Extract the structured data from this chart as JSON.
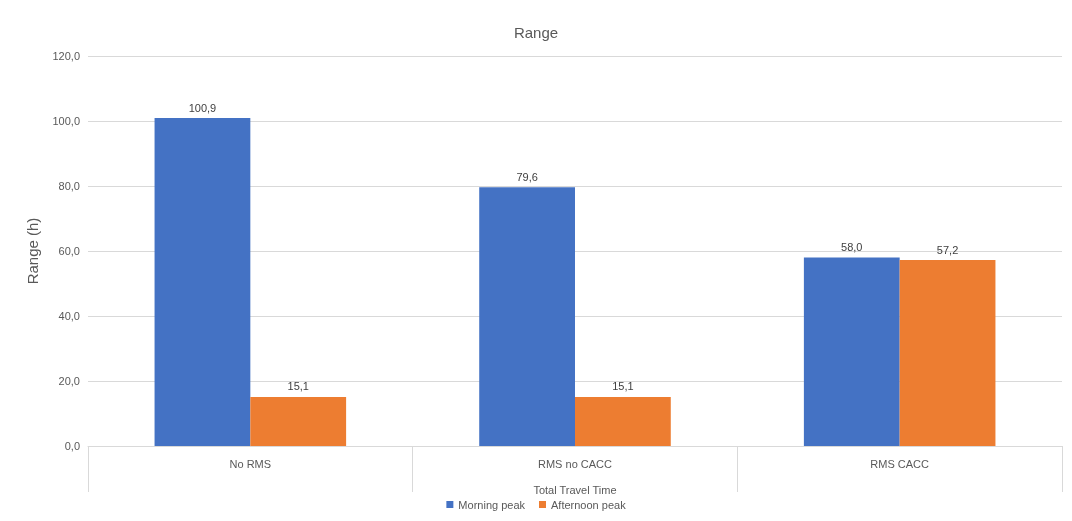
{
  "chart_data": {
    "type": "bar",
    "title": "Range",
    "ylabel": "Range (h)",
    "xlabel": "Total Travel Time",
    "categories": [
      "No RMS",
      "RMS no CACC",
      "RMS CACC"
    ],
    "series": [
      {
        "name": "Morning peak",
        "color": "#4472c4",
        "values": [
          100.9,
          79.6,
          58.0
        ],
        "value_labels": [
          "100,9",
          "79,6",
          "58,0"
        ]
      },
      {
        "name": "Afternoon peak",
        "color": "#ed7d31",
        "values": [
          15.1,
          15.1,
          57.2
        ],
        "value_labels": [
          "15,1",
          "15,1",
          "57,2"
        ]
      }
    ],
    "ylim": [
      0,
      120
    ],
    "yticks": [
      {
        "value": 0,
        "label": "0,0"
      },
      {
        "value": 20,
        "label": "20,0"
      },
      {
        "value": 40,
        "label": "40,0"
      },
      {
        "value": 60,
        "label": "60,0"
      },
      {
        "value": 80,
        "label": "80,0"
      },
      {
        "value": 100,
        "label": "100,0"
      },
      {
        "value": 120,
        "label": "120,0"
      }
    ],
    "grid": "y",
    "legend": "bottom"
  }
}
